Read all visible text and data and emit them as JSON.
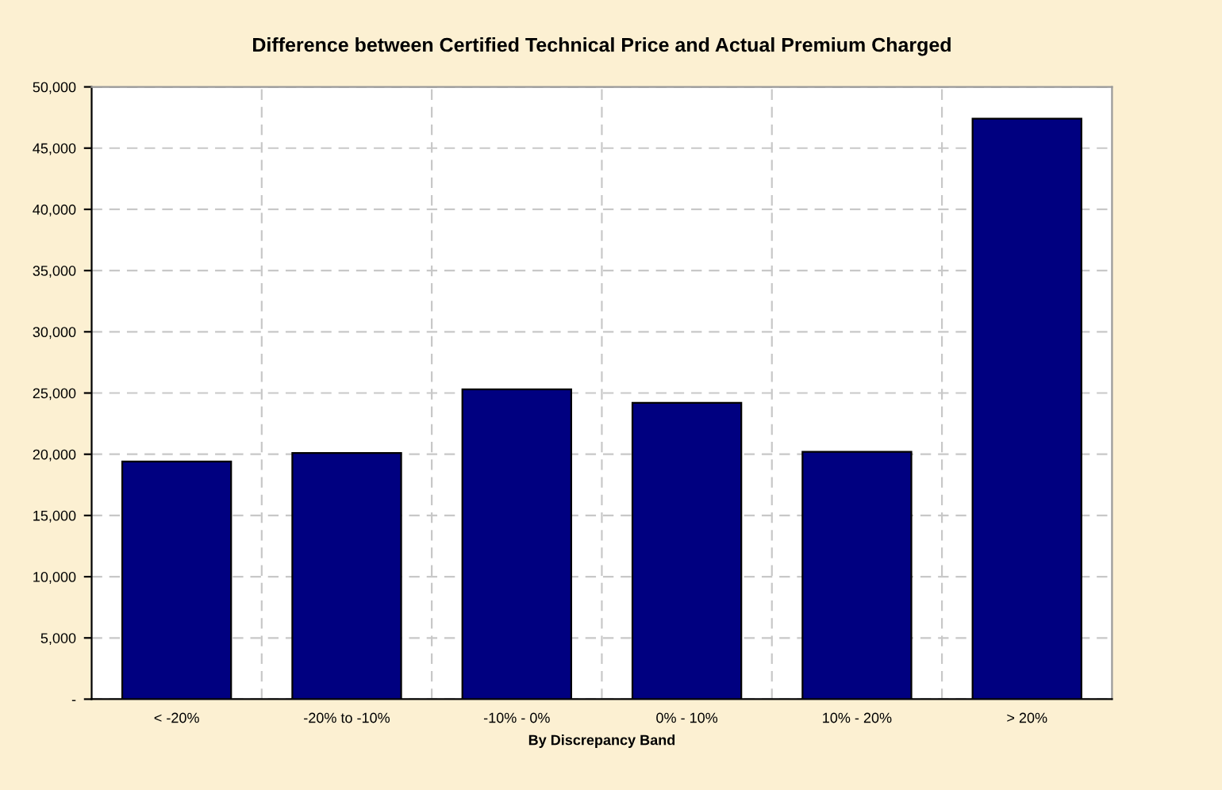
{
  "chart_data": {
    "type": "bar",
    "title": "Difference between Certified Technical Price and Actual Premium Charged",
    "xlabel": "By Discrepancy Band",
    "categories": [
      "< -20%",
      "-20% to -10%",
      "-10% - 0%",
      "0% - 10%",
      "10% - 20%",
      "> 20%"
    ],
    "values": [
      19400,
      20100,
      25300,
      24200,
      20200,
      47400
    ],
    "color": "#000080",
    "ylim": [
      0,
      50000
    ],
    "yticks": [
      {
        "value": 0,
        "label": "-"
      },
      {
        "value": 5000,
        "label": "5,000"
      },
      {
        "value": 10000,
        "label": "10,000"
      },
      {
        "value": 15000,
        "label": "15,000"
      },
      {
        "value": 20000,
        "label": "20,000"
      },
      {
        "value": 25000,
        "label": "25,000"
      },
      {
        "value": 30000,
        "label": "30,000"
      },
      {
        "value": 35000,
        "label": "35,000"
      },
      {
        "value": 40000,
        "label": "40,000"
      },
      {
        "value": 45000,
        "label": "45,000"
      },
      {
        "value": 50000,
        "label": "50,000"
      }
    ],
    "grid": true
  }
}
